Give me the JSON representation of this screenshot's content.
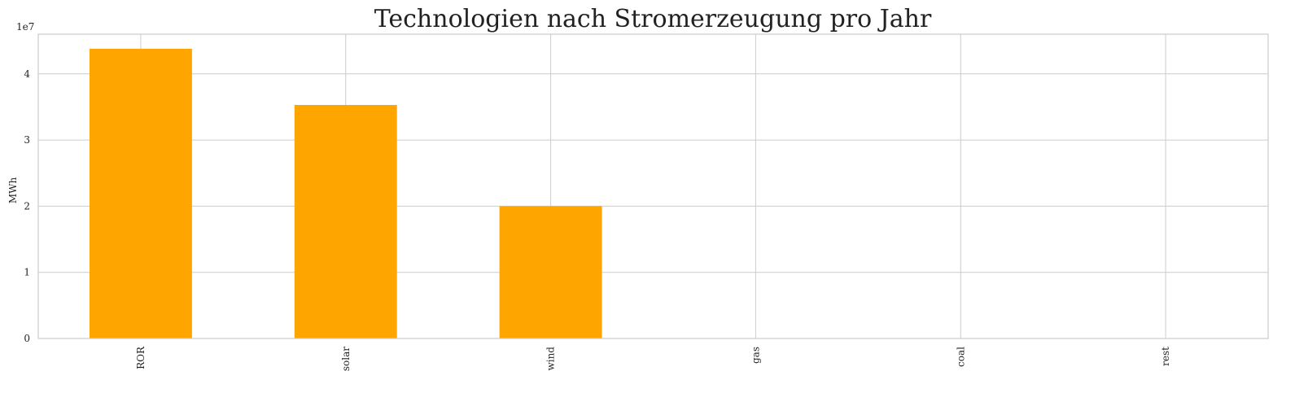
{
  "chart_data": {
    "type": "bar",
    "title": "Technologien nach Stromerzeugung pro Jahr",
    "xlabel": "",
    "ylabel": "MWh",
    "scale_label": "1e7",
    "categories": [
      "ROR",
      "solar",
      "wind",
      "gas",
      "coal",
      "rest"
    ],
    "values": [
      43800000,
      35300000,
      20000000,
      0,
      0,
      0
    ],
    "ylim": [
      0,
      46000000
    ],
    "yticks": [
      0,
      10000000,
      20000000,
      30000000,
      40000000
    ],
    "ytick_labels": [
      "0",
      "1",
      "2",
      "3",
      "4"
    ],
    "grid": true,
    "bar_color": "#ffa500"
  }
}
